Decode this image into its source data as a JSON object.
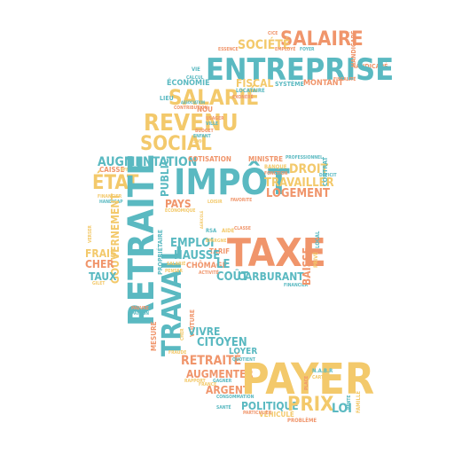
{
  "colors": {
    "teal": "#5ab9c1",
    "yellow": "#f3c96b",
    "orange": "#f0956b",
    "background": "#ffffff"
  },
  "words": {
    "salaire": "SALAIRE",
    "entreprise": "ENTREPRISE",
    "societe": "SOCIÉTÉ",
    "handicape": "HANDICAPÉ",
    "fiscal": "FISCAL",
    "economie": "ÉCONOMIE",
    "systeme": "SYSTÈME",
    "montant": "MONTANT",
    "salarie": "SALARIÉ",
    "revenu": "REVENU",
    "social": "SOCIAL",
    "augmentation": "AUGMENTATION",
    "cotisation": "COTISATION",
    "ministre": "MINISTRE",
    "impot": "IMPÔT",
    "droit": "DROIT",
    "travailler": "TRAVAILLER",
    "logement": "LOGEMENT",
    "etat": "ÉTAT",
    "caisse": "CAISSE",
    "public": "PUBLIC",
    "pays": "PAYS",
    "retraite": "RETRAITE",
    "travail": "TRAVAIL",
    "gouvernement": "GOUVERNEMENT",
    "frais": "FRAIS",
    "cher": "CHER",
    "taux": "TAUX",
    "emploi": "EMPLOI",
    "hausse": "HAUSSE",
    "chomage": "CHÔMAGE",
    "le": "LE",
    "taxe": "TAXE",
    "cout": "COÛT",
    "carburant": "CARBURANT",
    "proprietaire": "PROPRIÉTAIRE",
    "mesure": "MESURE",
    "vivre": "VIVRE",
    "citoyen": "CITOYEN",
    "retraite2": "RETRAITÉ",
    "loyer": "LOYER",
    "augmenter": "AUGMENTER",
    "argent": "ARGENT",
    "payer": "PAYER",
    "politique": "POLITIQUE",
    "prix": "PRIX",
    "loi": "LOI",
    "vehicule": "VÉHICULE",
    "famille": "FAMILLE",
    "probleme": "PROBLÈME",
    "contrat": "CONTRAT",
    "banque": "BANQUE",
    "lieu": "LIEU",
    "tarif": "TARIF",
    "aide": "AIDE",
    "locataire": "LOCATAIRE",
    "professionnel": "PROFESSIONNEL",
    "financier": "FINANCIER",
    "verser": "VERSER",
    "payer_small": "PAYER",
    "nou": "NOU",
    "essence": "ESSENCE",
    "cice": "CICE",
    "employe": "EMPLOYÉ",
    "vie": "VIE",
    "calcul": "CALCUL",
    "foyer": "FOYER",
    "fiscalite": "FISCALITÉ",
    "handicap": "HANDICAP",
    "exonere": "EXONÉRÉ",
    "depense": "DÉPENSE",
    "greve": "GRÈVE",
    "loi_tag": "LOI",
    "contribution": "CONTRIBUTION",
    "association": "ASSOCIATION",
    "usager": "USAGER",
    "ville": "VILLE",
    "budget": "BUDGET",
    "enfant": "ENFANT",
    "smic": "SMIC",
    "effort": "EFFORT",
    "fonction": "FONCTION",
    "deficit": "DÉFICIT",
    "economique": "ÉCONOMIQUE",
    "favorite": "FAVORITE",
    "loisir": "LOISIR",
    "voiture": "VOITURE",
    "cher_small": "CHER",
    "gilet": "GILET",
    "pauvre": "PAUVRE",
    "patron": "PATRON",
    "epargne": "ÉPARGNE",
    "salarie_small": "SALARIÉ",
    "penser": "PENSER",
    "activite": "ACTIVITÉ",
    "rsa": "RSA",
    "classe": "CLASSE",
    "baisse": "BAISSE",
    "prive": "PRIVÉ",
    "emploi_small": "EMPLOI",
    "fraude": "FRAUDE",
    "quotient": "QUOTIENT",
    "rapport": "RAPPORT",
    "france": "FRANCE",
    "rente": "RENTE",
    "gagner": "GAGNER",
    "consommation": "CONSOMMATION",
    "particulier": "PARTICULIER",
    "personne": "PERSONNE",
    "impot_small": "IMPÔT",
    "service": "SERVICE",
    "pension": "PENSION",
    "charges": "CHARGES",
    "reduction": "RÉDUCTION",
    "public_small": "PUBLIC",
    "taxation": "TAXATION",
    "mutuelle": "MUTUELLE",
    "paiement": "PAIEMENT",
    "logement_small": "LOGEMENT",
    "montant_small": "MONTANT",
    "travail_small": "TRAVAIL",
    "europe": "EUROPE",
    "solidarite": "SOLIDARITÉ",
    "revenu_small": "REVENU",
    "fixe": "FIXE",
    "aide_small": "AIDE",
    "jeune": "JEUNE",
    "hors": "HORS",
    "sante": "SANTÉ",
    "agricole": "AGRICOLE",
    "cadre": "CADRE",
    "taxe_small": "TAXE",
    "local": "LOCAL",
    "place": "PLACE",
    "navbr": "N.A.B.R",
    "carte": "CARTE"
  }
}
